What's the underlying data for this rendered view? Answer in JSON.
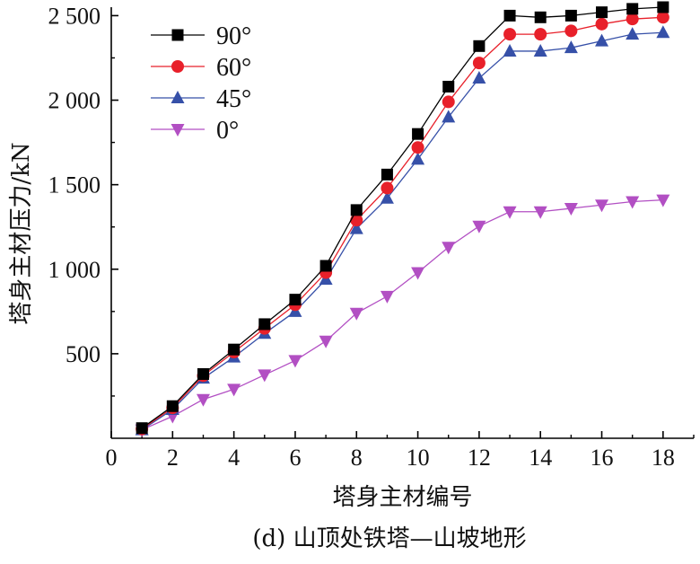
{
  "chart_data": {
    "type": "line",
    "caption": "(d) 山顶处铁塔—山坡地形",
    "xlabel": "塔身主材编号",
    "ylabel": "塔身主材压力/kN",
    "xlim": [
      0,
      19
    ],
    "ylim": [
      0,
      2550
    ],
    "x_ticks": [
      0,
      2,
      4,
      6,
      8,
      10,
      12,
      14,
      16,
      18
    ],
    "x_tick_labels": [
      "0",
      "2",
      "4",
      "6",
      "8",
      "10",
      "12",
      "14",
      "16",
      "18"
    ],
    "y_ticks": [
      500,
      1000,
      1500,
      2000,
      2500
    ],
    "y_tick_labels": [
      "500",
      "1 000",
      "1 500",
      "2 000",
      "2 500"
    ],
    "legend_position": "top-left",
    "x": [
      1,
      2,
      3,
      4,
      5,
      6,
      7,
      8,
      9,
      10,
      11,
      12,
      13,
      14,
      15,
      16,
      17,
      18
    ],
    "series": [
      {
        "name": "90°",
        "marker": "square",
        "color": "#000000",
        "values": [
          60,
          190,
          380,
          525,
          675,
          820,
          1020,
          1350,
          1560,
          1800,
          2080,
          2320,
          2500,
          2490,
          2500,
          2520,
          2540,
          2550
        ]
      },
      {
        "name": "60°",
        "marker": "circle",
        "color": "#e8202a",
        "values": [
          55,
          180,
          370,
          510,
          650,
          790,
          980,
          1290,
          1480,
          1720,
          1990,
          2220,
          2390,
          2390,
          2410,
          2450,
          2480,
          2490
        ]
      },
      {
        "name": "45°",
        "marker": "triangle-up",
        "color": "#3650a8",
        "values": [
          50,
          170,
          355,
          480,
          620,
          750,
          940,
          1240,
          1420,
          1650,
          1900,
          2130,
          2290,
          2290,
          2310,
          2350,
          2390,
          2400
        ]
      },
      {
        "name": "0°",
        "marker": "triangle-down",
        "color": "#b24fc3",
        "values": [
          50,
          130,
          230,
          290,
          375,
          460,
          575,
          740,
          840,
          980,
          1130,
          1255,
          1340,
          1340,
          1360,
          1380,
          1400,
          1410
        ]
      }
    ]
  }
}
